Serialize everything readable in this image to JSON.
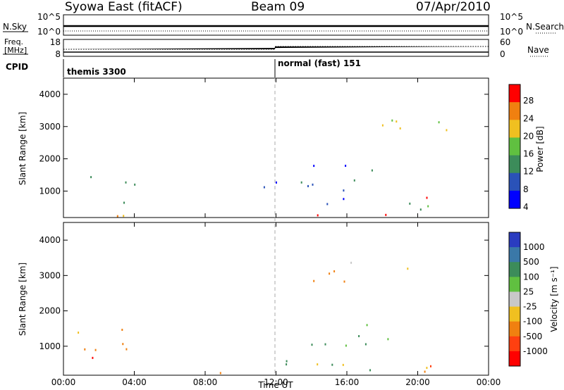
{
  "header": {
    "title": "Syowa East (fitACF)",
    "beam": "Beam 09",
    "date": "07/Apr/2010"
  },
  "labels": {
    "nsky": "N.Sky",
    "nsky_ticks": [
      "10^5",
      "10^0"
    ],
    "nsearch": "N.Search",
    "nsearch_ticks": [
      "10^5",
      "10^0"
    ],
    "freq_line1": "Freq.",
    "freq_line2": "[MHz]",
    "freq_ticks": [
      "18",
      "8"
    ],
    "nave": "Nave",
    "nave_ticks": [
      "60",
      "0"
    ],
    "cpid": "CPID",
    "cpid_segments": [
      "themis 3300",
      "normal (fast) 151"
    ],
    "power_axis": "Power [dB]",
    "velocity_axis": "Velocity [m s⁻¹]"
  },
  "chart_data": [
    {
      "type": "heatmap",
      "name": "power",
      "ylabel": "Slant Range [km]",
      "xlabel": "Time UT",
      "xlim": [
        0,
        24
      ],
      "ylim": [
        180,
        4500
      ],
      "xticks": [
        "00:00",
        "04:00",
        "08:00",
        "12:00",
        "16:00",
        "20:00",
        "00:00"
      ],
      "yticks": [
        1000,
        2000,
        3000,
        4000
      ],
      "colorbar": {
        "label": "Power [dB]",
        "ticks": [
          "4",
          "8",
          "12",
          "16",
          "20",
          "24",
          "28"
        ],
        "colors": [
          "#0000ff",
          "#2a52b8",
          "#3c8c5a",
          "#60c040",
          "#f0c020",
          "#f08010",
          "#ff0000"
        ]
      },
      "scatter_regions": [
        {
          "t": [
            0.2,
            4.5
          ],
          "r": [
            180,
            420
          ],
          "level": 5
        },
        {
          "t": [
            1.0,
            4.0
          ],
          "r": [
            450,
            1600
          ],
          "level": 2
        },
        {
          "t": [
            3.0,
            4.5
          ],
          "r": [
            200,
            500
          ],
          "level": 3
        },
        {
          "t": [
            10.5,
            12.2
          ],
          "r": [
            200,
            1500
          ],
          "level": 1
        },
        {
          "t": [
            12.5,
            19.0
          ],
          "r": [
            180,
            450
          ],
          "level": 6
        },
        {
          "t": [
            12.5,
            16.5
          ],
          "r": [
            450,
            2400
          ],
          "level": 1
        },
        {
          "t": [
            15.5,
            17.5
          ],
          "r": [
            1500,
            1900
          ],
          "level": 3
        },
        {
          "t": [
            19.5,
            22.0
          ],
          "r": [
            300,
            1500
          ],
          "level": 2
        },
        {
          "t": [
            20.0,
            21.0
          ],
          "r": [
            500,
            1100
          ],
          "level": 5
        },
        {
          "t": [
            13.0,
            22.0
          ],
          "r": [
            2800,
            3400
          ],
          "level": 4
        }
      ]
    },
    {
      "type": "heatmap",
      "name": "velocity",
      "ylabel": "Slant Range [km]",
      "xlabel": "Time UT",
      "xlim": [
        0,
        24
      ],
      "ylim": [
        180,
        4500
      ],
      "xticks": [
        "00:00",
        "04:00",
        "08:00",
        "12:00",
        "16:00",
        "20:00",
        "00:00"
      ],
      "yticks": [
        1000,
        2000,
        3000,
        4000
      ],
      "colorbar": {
        "label": "Velocity [m s⁻¹]",
        "ticks": [
          "1000",
          "500",
          "100",
          "25",
          "-25",
          "-100",
          "-500",
          "-1000"
        ],
        "colors": [
          "#2a3cc0",
          "#3a78a8",
          "#3c8c5a",
          "#60c040",
          "#c8c8c8",
          "#f0c020",
          "#f08010",
          "#ff4010",
          "#ff0000"
        ]
      },
      "scatter_regions": [
        {
          "t": [
            0.5,
            4.0
          ],
          "r": [
            200,
            1500
          ],
          "level": 6
        },
        {
          "t": [
            1.0,
            3.5
          ],
          "r": [
            450,
            1000
          ],
          "level": 7
        },
        {
          "t": [
            4.0,
            10.0
          ],
          "r": [
            180,
            400
          ],
          "level": 6
        },
        {
          "t": [
            12.5,
            19.5
          ],
          "r": [
            180,
            1500
          ],
          "level": 2
        },
        {
          "t": [
            14.0,
            16.5
          ],
          "r": [
            180,
            800
          ],
          "level": 4
        },
        {
          "t": [
            15.5,
            17.5
          ],
          "r": [
            1500,
            1900
          ],
          "level": 3
        },
        {
          "t": [
            19.5,
            22.0
          ],
          "r": [
            300,
            1500
          ],
          "level": 6
        },
        {
          "t": [
            20.0,
            21.0
          ],
          "r": [
            700,
            1000
          ],
          "level": 7
        },
        {
          "t": [
            13.0,
            22.0
          ],
          "r": [
            2800,
            3400
          ],
          "level": 5
        }
      ]
    }
  ]
}
